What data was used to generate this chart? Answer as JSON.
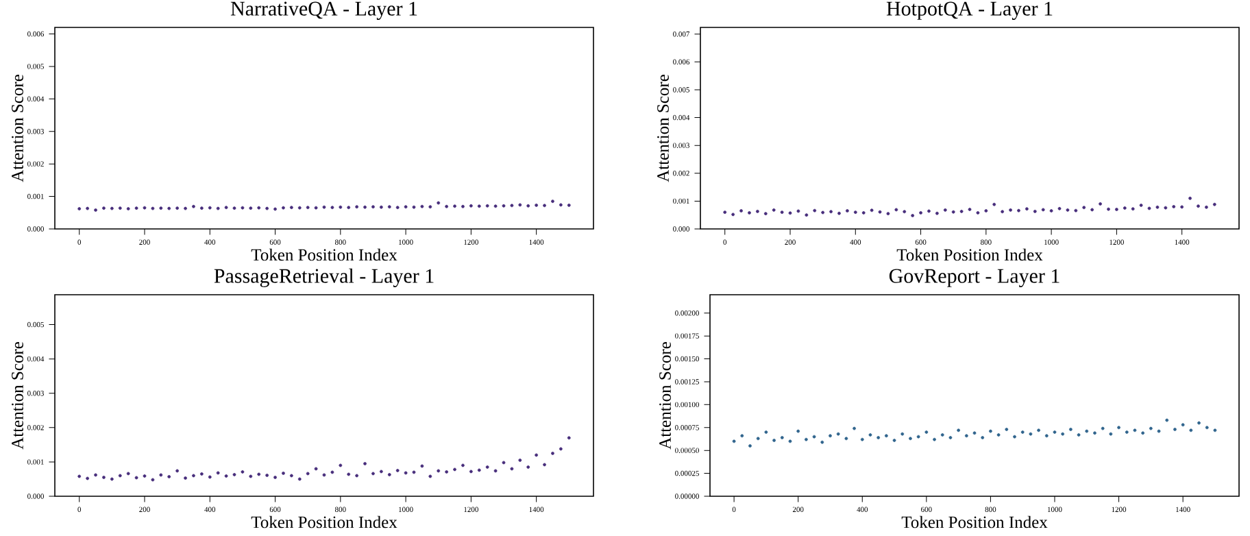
{
  "chart_data": [
    {
      "type": "scatter",
      "title": "NarrativeQA - Layer 1",
      "xlabel": "Token Position Index",
      "ylabel": "Attention Score",
      "marker": "circle",
      "grid": false,
      "xlim": [
        -75,
        1575
      ],
      "ylim": [
        0,
        0.0062
      ],
      "xticks": [
        0,
        200,
        400,
        600,
        800,
        1000,
        1200,
        1400
      ],
      "yticks": [
        {
          "value": 0,
          "label": "0.000"
        },
        {
          "value": 0.001,
          "label": "0.001"
        },
        {
          "value": 0.002,
          "label": "0.002"
        },
        {
          "value": 0.003,
          "label": "0.003"
        },
        {
          "value": 0.004,
          "label": "0.004"
        },
        {
          "value": 0.005,
          "label": "0.005"
        },
        {
          "value": 0.006,
          "label": "0.006"
        }
      ],
      "x": [
        0,
        25,
        50,
        75,
        100,
        125,
        150,
        175,
        200,
        225,
        250,
        275,
        300,
        325,
        350,
        375,
        400,
        425,
        450,
        475,
        500,
        525,
        550,
        575,
        600,
        625,
        650,
        675,
        700,
        725,
        750,
        775,
        800,
        825,
        850,
        875,
        900,
        925,
        950,
        975,
        1000,
        1025,
        1050,
        1075,
        1100,
        1125,
        1150,
        1175,
        1200,
        1225,
        1250,
        1275,
        1300,
        1325,
        1350,
        1375,
        1400,
        1425,
        1450,
        1475,
        1500
      ],
      "series": [
        {
          "color": "#472d7b",
          "values": [
            0.00062,
            0.00063,
            0.00058,
            0.00064,
            0.00063,
            0.00064,
            0.00062,
            0.00064,
            0.00065,
            0.00063,
            0.00064,
            0.00063,
            0.00064,
            0.00063,
            0.00069,
            0.00064,
            0.00065,
            0.00063,
            0.00066,
            0.00064,
            0.00065,
            0.00064,
            0.00065,
            0.00063,
            0.00061,
            0.00065,
            0.00066,
            0.00065,
            0.00066,
            0.00065,
            0.00067,
            0.00066,
            0.00067,
            0.00066,
            0.00068,
            0.00067,
            0.00068,
            0.00067,
            0.00068,
            0.00066,
            0.00068,
            0.00067,
            0.00069,
            0.00068,
            0.0008,
            0.00069,
            0.0007,
            0.00069,
            0.00071,
            0.0007,
            0.00071,
            0.0007,
            0.00071,
            0.00072,
            0.00074,
            0.00071,
            0.00073,
            0.00072,
            0.00085,
            0.00074,
            0.00073
          ]
        }
      ]
    },
    {
      "type": "scatter",
      "title": "HotpotQA - Layer 1",
      "xlabel": "Token Position Index",
      "ylabel": "Attention Score",
      "marker": "circle",
      "grid": false,
      "xlim": [
        -75,
        1575
      ],
      "ylim": [
        0,
        0.00724
      ],
      "xticks": [
        0,
        200,
        400,
        600,
        800,
        1000,
        1200,
        1400
      ],
      "yticks": [
        {
          "value": 0,
          "label": "0.000"
        },
        {
          "value": 0.001,
          "label": "0.001"
        },
        {
          "value": 0.002,
          "label": "0.002"
        },
        {
          "value": 0.003,
          "label": "0.003"
        },
        {
          "value": 0.004,
          "label": "0.004"
        },
        {
          "value": 0.005,
          "label": "0.005"
        },
        {
          "value": 0.006,
          "label": "0.006"
        },
        {
          "value": 0.007,
          "label": "0.007"
        }
      ],
      "x": [
        0,
        25,
        50,
        75,
        100,
        125,
        150,
        175,
        200,
        225,
        250,
        275,
        300,
        325,
        350,
        375,
        400,
        425,
        450,
        475,
        500,
        525,
        550,
        575,
        600,
        625,
        650,
        675,
        700,
        725,
        750,
        775,
        800,
        825,
        850,
        875,
        900,
        925,
        950,
        975,
        1000,
        1025,
        1050,
        1075,
        1100,
        1125,
        1150,
        1175,
        1200,
        1225,
        1250,
        1275,
        1300,
        1325,
        1350,
        1375,
        1400,
        1425,
        1450,
        1475,
        1500
      ],
      "series": [
        {
          "color": "#472d7b",
          "values": [
            0.0006,
            0.00052,
            0.00065,
            0.00058,
            0.00063,
            0.00055,
            0.00068,
            0.0006,
            0.00057,
            0.00064,
            0.0005,
            0.00066,
            0.00059,
            0.00062,
            0.00056,
            0.00065,
            0.0006,
            0.00058,
            0.00067,
            0.00061,
            0.00055,
            0.00069,
            0.00062,
            0.00048,
            0.00058,
            0.00064,
            0.00056,
            0.00068,
            0.00061,
            0.00063,
            0.0007,
            0.00058,
            0.00065,
            0.00088,
            0.00062,
            0.00068,
            0.00066,
            0.00072,
            0.00063,
            0.00069,
            0.00065,
            0.00073,
            0.00068,
            0.00066,
            0.00077,
            0.00069,
            0.0009,
            0.00071,
            0.0007,
            0.00075,
            0.00072,
            0.00085,
            0.00074,
            0.00078,
            0.00076,
            0.0008,
            0.00079,
            0.0011,
            0.00082,
            0.00078,
            0.00088
          ]
        }
      ]
    },
    {
      "type": "scatter",
      "title": "PassageRetrieval - Layer 1",
      "xlabel": "Token Position Index",
      "ylabel": "Attention Score",
      "marker": "circle",
      "grid": false,
      "xlim": [
        -75,
        1575
      ],
      "ylim": [
        0,
        0.00587
      ],
      "xticks": [
        0,
        200,
        400,
        600,
        800,
        1000,
        1200,
        1400
      ],
      "yticks": [
        {
          "value": 0,
          "label": "0.000"
        },
        {
          "value": 0.001,
          "label": "0.001"
        },
        {
          "value": 0.002,
          "label": "0.002"
        },
        {
          "value": 0.003,
          "label": "0.003"
        },
        {
          "value": 0.004,
          "label": "0.004"
        },
        {
          "value": 0.005,
          "label": "0.005"
        }
      ],
      "x": [
        0,
        25,
        50,
        75,
        100,
        125,
        150,
        175,
        200,
        225,
        250,
        275,
        300,
        325,
        350,
        375,
        400,
        425,
        450,
        475,
        500,
        525,
        550,
        575,
        600,
        625,
        650,
        675,
        700,
        725,
        750,
        775,
        800,
        825,
        850,
        875,
        900,
        925,
        950,
        975,
        1000,
        1025,
        1050,
        1075,
        1100,
        1125,
        1150,
        1175,
        1200,
        1225,
        1250,
        1275,
        1300,
        1325,
        1350,
        1375,
        1400,
        1425,
        1450,
        1475,
        1500
      ],
      "series": [
        {
          "color": "#472d7b",
          "values": [
            0.00058,
            0.00052,
            0.00062,
            0.00055,
            0.0005,
            0.0006,
            0.00066,
            0.00054,
            0.00059,
            0.00048,
            0.00062,
            0.00057,
            0.00074,
            0.00053,
            0.0006,
            0.00065,
            0.00056,
            0.00068,
            0.00059,
            0.00063,
            0.00071,
            0.00058,
            0.00064,
            0.00061,
            0.00055,
            0.00067,
            0.0006,
            0.0005,
            0.00066,
            0.0008,
            0.00062,
            0.0007,
            0.0009,
            0.00064,
            0.0006,
            0.00095,
            0.00066,
            0.00072,
            0.00063,
            0.00075,
            0.00068,
            0.0007,
            0.00088,
            0.00058,
            0.00074,
            0.00071,
            0.00078,
            0.0009,
            0.00072,
            0.00076,
            0.00085,
            0.00074,
            0.00098,
            0.0008,
            0.00105,
            0.00085,
            0.0012,
            0.00092,
            0.00125,
            0.00138,
            0.0017
          ]
        }
      ]
    },
    {
      "type": "scatter",
      "title": "GovReport - Layer 1",
      "xlabel": "Token Position Index",
      "ylabel": "Attention Score",
      "marker": "circle",
      "grid": false,
      "xlim": [
        -75,
        1575
      ],
      "ylim": [
        0,
        0.0022
      ],
      "xticks": [
        0,
        200,
        400,
        600,
        800,
        1000,
        1200,
        1400
      ],
      "yticks": [
        {
          "value": 0,
          "label": "0.00000"
        },
        {
          "value": 0.00025,
          "label": "0.00025"
        },
        {
          "value": 0.0005,
          "label": "0.00050"
        },
        {
          "value": 0.00075,
          "label": "0.00075"
        },
        {
          "value": 0.001,
          "label": "0.00100"
        },
        {
          "value": 0.00125,
          "label": "0.00125"
        },
        {
          "value": 0.0015,
          "label": "0.00150"
        },
        {
          "value": 0.00175,
          "label": "0.00175"
        },
        {
          "value": 0.002,
          "label": "0.00200"
        }
      ],
      "x": [
        0,
        25,
        50,
        75,
        100,
        125,
        150,
        175,
        200,
        225,
        250,
        275,
        300,
        325,
        350,
        375,
        400,
        425,
        450,
        475,
        500,
        525,
        550,
        575,
        600,
        625,
        650,
        675,
        700,
        725,
        750,
        775,
        800,
        825,
        850,
        875,
        900,
        925,
        950,
        975,
        1000,
        1025,
        1050,
        1075,
        1100,
        1125,
        1150,
        1175,
        1200,
        1225,
        1250,
        1275,
        1300,
        1325,
        1350,
        1375,
        1400,
        1425,
        1450,
        1475,
        1500
      ],
      "series": [
        {
          "color": "#30648d",
          "values": [
            0.0006,
            0.00066,
            0.00055,
            0.00063,
            0.0007,
            0.00061,
            0.00064,
            0.0006,
            0.00071,
            0.00062,
            0.00065,
            0.00059,
            0.00066,
            0.00068,
            0.00063,
            0.00074,
            0.00062,
            0.00067,
            0.00064,
            0.00066,
            0.00061,
            0.00068,
            0.00063,
            0.00065,
            0.0007,
            0.00062,
            0.00067,
            0.00064,
            0.00072,
            0.00066,
            0.00069,
            0.00064,
            0.00071,
            0.00067,
            0.00073,
            0.00065,
            0.0007,
            0.00068,
            0.00072,
            0.00066,
            0.0007,
            0.00068,
            0.00073,
            0.00067,
            0.00071,
            0.00069,
            0.00074,
            0.00068,
            0.00075,
            0.0007,
            0.00072,
            0.00069,
            0.00074,
            0.00071,
            0.00083,
            0.00073,
            0.00078,
            0.00072,
            0.0008,
            0.00075,
            0.00072
          ]
        }
      ]
    }
  ]
}
